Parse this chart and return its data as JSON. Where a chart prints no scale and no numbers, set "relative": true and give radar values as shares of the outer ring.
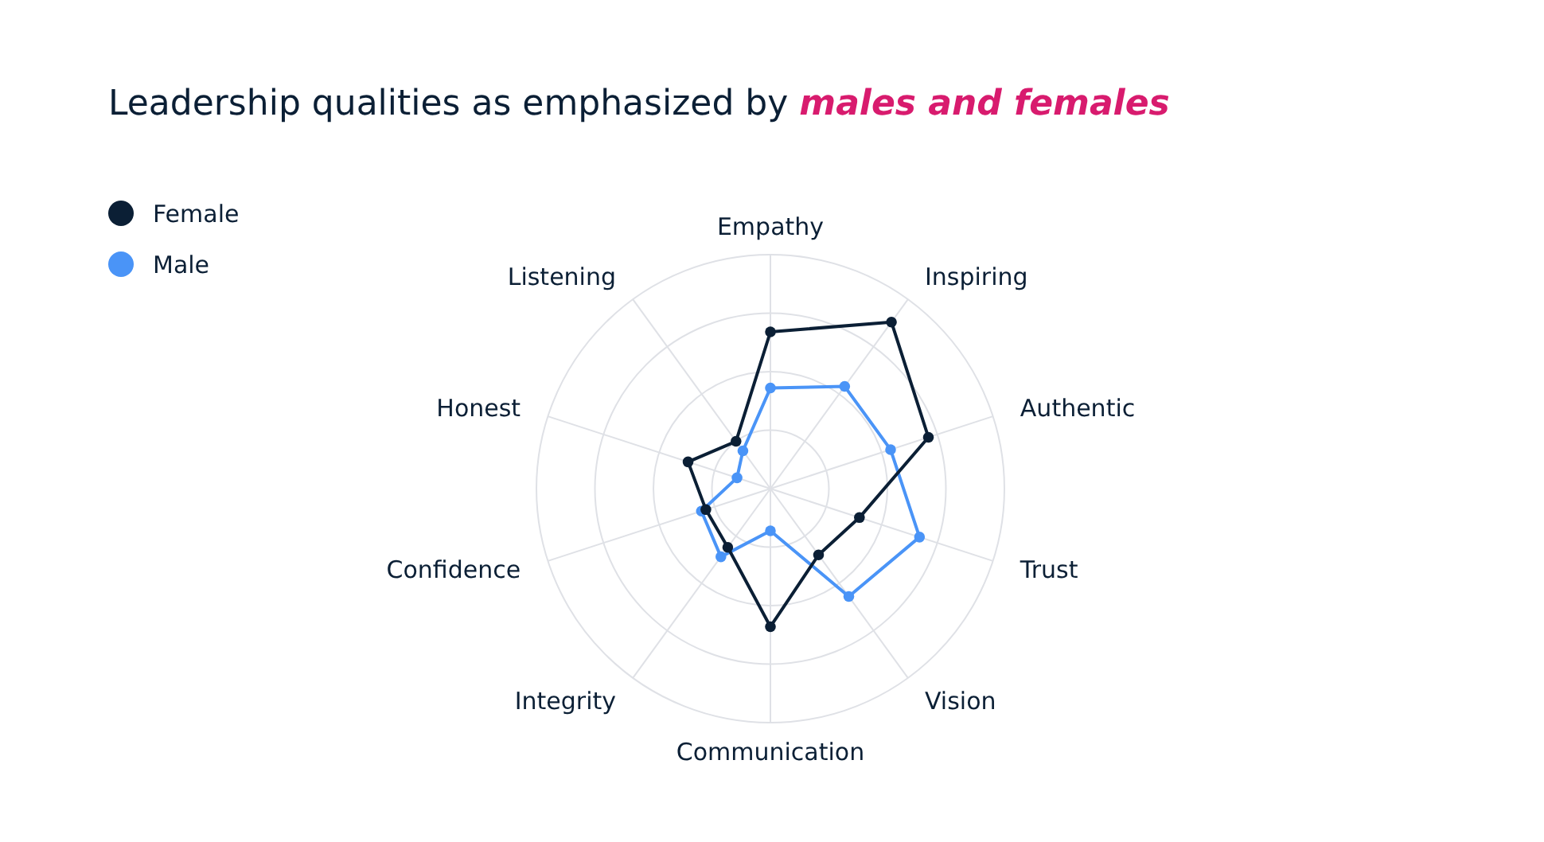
{
  "chart_data": {
    "type": "radar",
    "title": "Leadership qualities as emphasized by males and females",
    "relative": true,
    "grid": true,
    "legend": "top left",
    "marker": "circle",
    "line_style": "solid",
    "categories": [
      "Empathy",
      "Inspiring",
      "Authentic",
      "Trust",
      "Vision",
      "Communication",
      "Integrity",
      "Confidence",
      "Honest",
      "Listening"
    ],
    "series": [
      {
        "name": "Female",
        "color": "#0b1f35",
        "values": [
          0.67,
          0.88,
          0.71,
          0.4,
          0.35,
          0.59,
          0.31,
          0.29,
          0.37,
          0.25
        ]
      },
      {
        "name": "Male",
        "color": "#4a94f7",
        "values": [
          0.43,
          0.54,
          0.54,
          0.67,
          0.57,
          0.18,
          0.36,
          0.31,
          0.15,
          0.2
        ]
      }
    ]
  }
}
